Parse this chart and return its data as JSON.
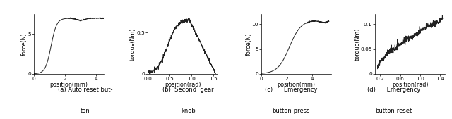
{
  "plots": [
    {
      "xlabel": "position(mm)",
      "ylabel": "force(N)",
      "xlim": [
        0,
        4.5
      ],
      "ylim": [
        0,
        7.5
      ],
      "xticks": [
        0,
        2,
        4
      ],
      "yticks": [
        0,
        5
      ],
      "yticklabels": [
        "0",
        "5"
      ],
      "curve": "auto_reset_button",
      "caption_line1": "(a) Auto reset but-",
      "caption_line2": "ton"
    },
    {
      "xlabel": "position(rad)",
      "ylabel": "torque(Nm)",
      "xlim": [
        0,
        1.6
      ],
      "ylim": [
        0,
        0.72
      ],
      "xticks": [
        0,
        0.5,
        1,
        1.5
      ],
      "yticks": [
        0,
        0.5
      ],
      "yticklabels": [
        "0",
        "0.5"
      ],
      "curve": "second_gear_knob",
      "caption_line1": "(b)  Second  gear",
      "caption_line2": "knob"
    },
    {
      "xlabel": "position(mm)",
      "ylabel": "force(N)",
      "xlim": [
        0,
        5.5
      ],
      "ylim": [
        0,
        12
      ],
      "xticks": [
        0,
        2,
        4
      ],
      "yticks": [
        0,
        5,
        10
      ],
      "yticklabels": [
        "0",
        "5",
        "10"
      ],
      "curve": "emergency_button_press",
      "caption_line1": "(c)      Emergency",
      "caption_line2": "button-press"
    },
    {
      "xlabel": "position(rad)",
      "ylabel": "torque(Nm)",
      "xlim": [
        0.1,
        1.5
      ],
      "ylim": [
        0,
        0.12
      ],
      "xticks": [
        0.2,
        0.6,
        1,
        1.4
      ],
      "yticks": [
        0,
        0.05,
        0.1
      ],
      "yticklabels": [
        "0",
        "0.05",
        "0.1"
      ],
      "curve": "emergency_button_reset",
      "caption_line1": "(d)      Emergency",
      "caption_line2": "button-reset"
    }
  ],
  "figure_width": 6.4,
  "figure_height": 1.69,
  "dpi": 100,
  "line_color": "#222222",
  "line_width": 0.7,
  "font_size": 5.8,
  "caption_font_size": 6.0
}
